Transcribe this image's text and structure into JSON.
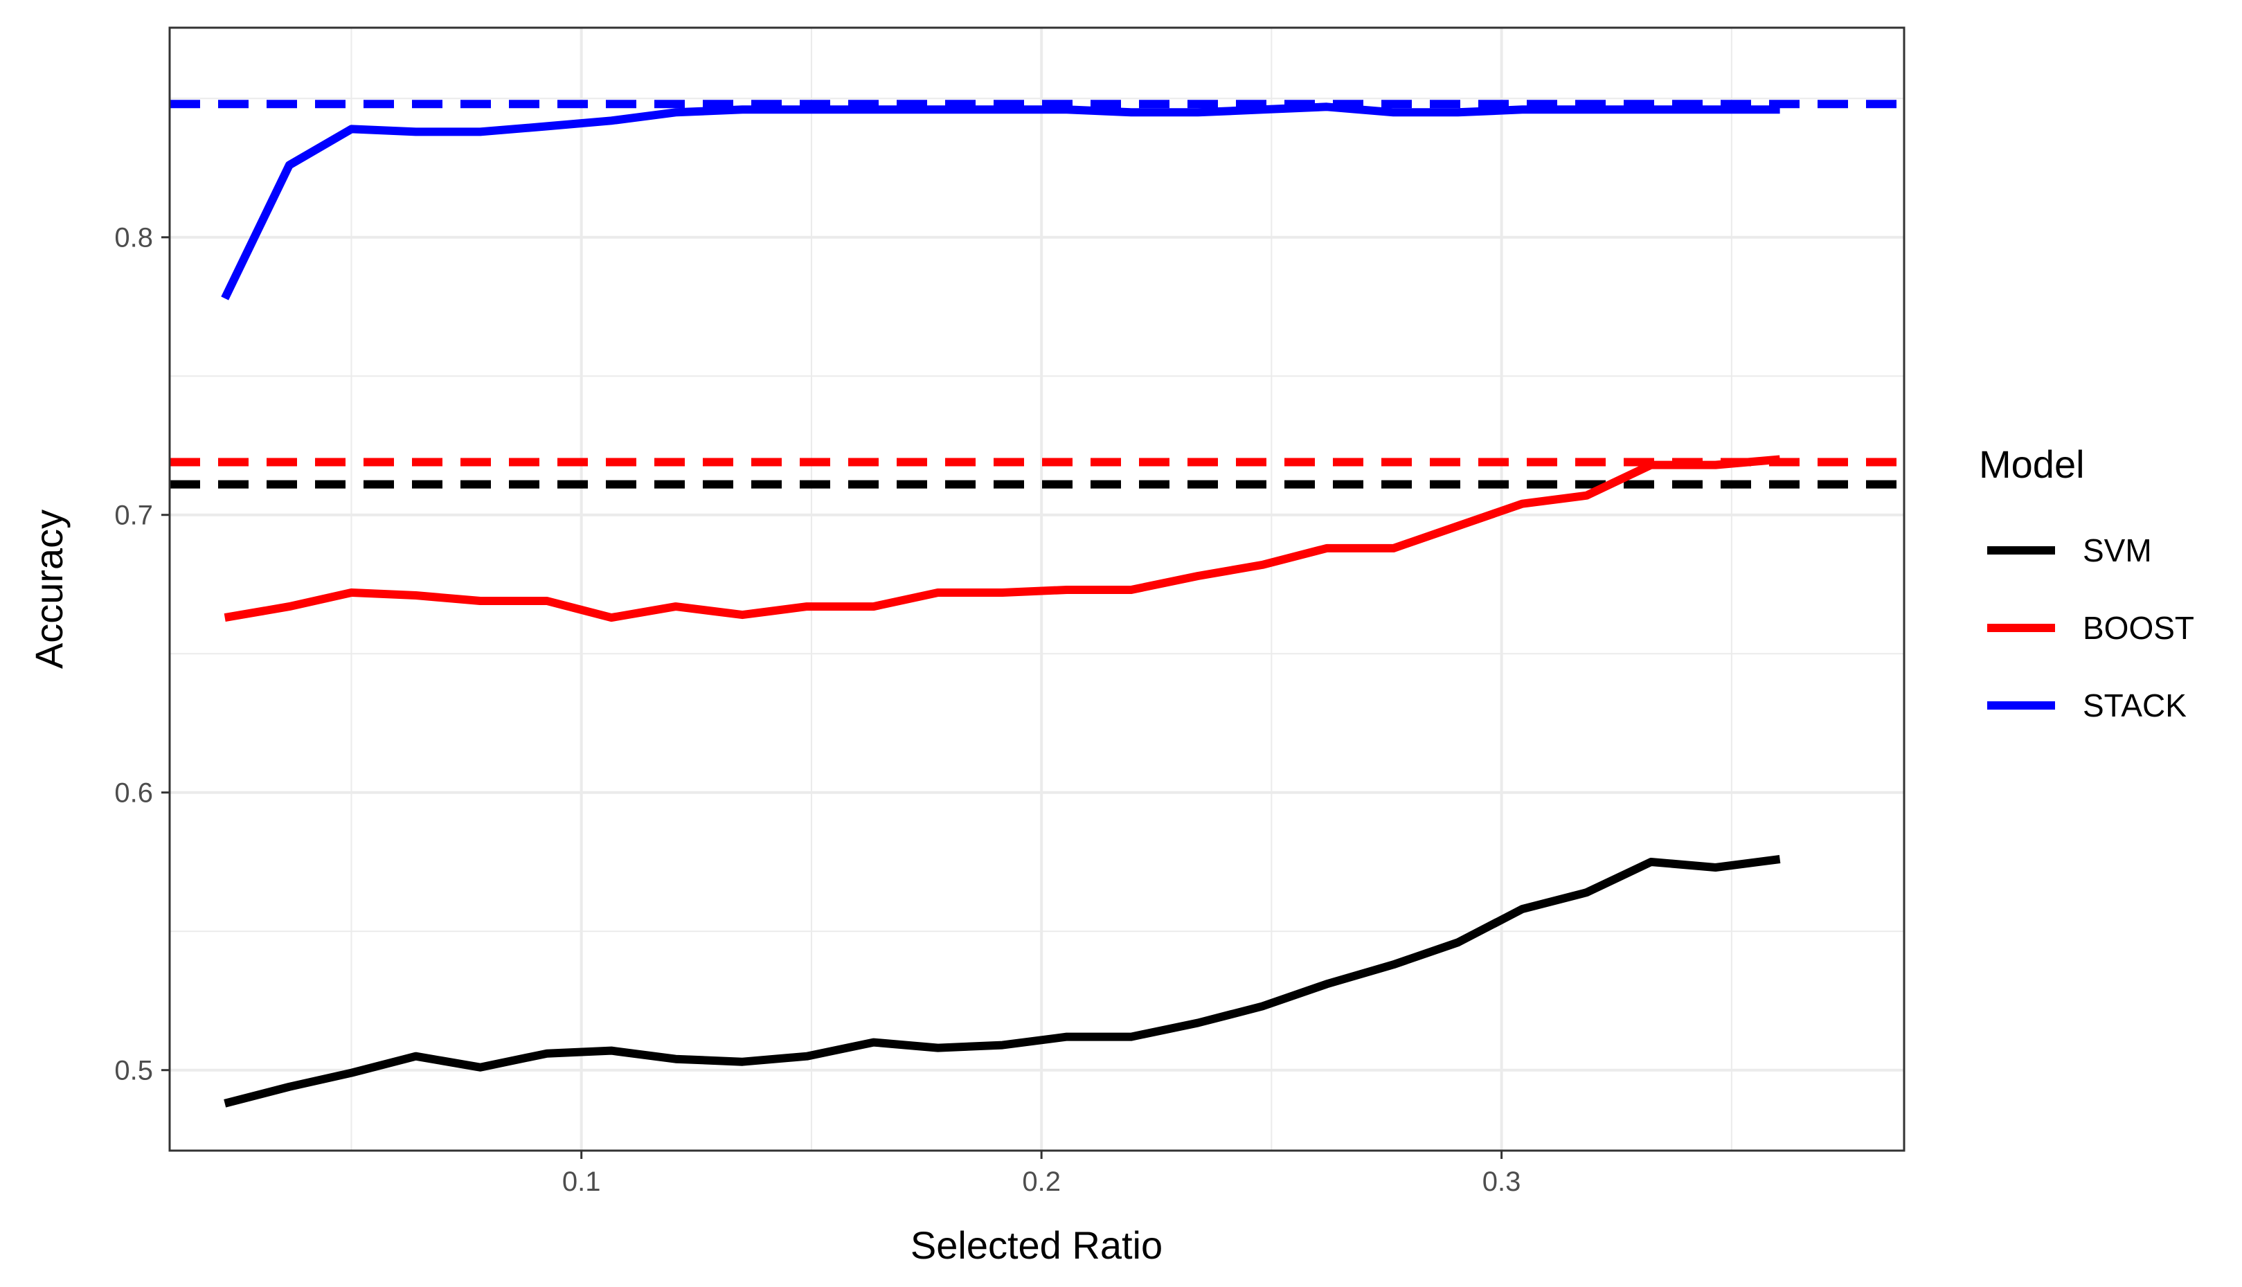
{
  "chart_data": {
    "type": "line",
    "title": "",
    "xlabel": "Selected Ratio",
    "ylabel": "Accuracy",
    "xlim": [
      0.0105,
      0.3875
    ],
    "ylim": [
      0.471,
      0.8755
    ],
    "x_ticks": [
      0.1,
      0.2,
      0.3
    ],
    "x_tick_labels": [
      "0.1",
      "0.2",
      "0.3"
    ],
    "y_ticks": [
      0.5,
      0.6,
      0.7,
      0.8
    ],
    "y_tick_labels": [
      "0.5",
      "0.6",
      "0.7",
      "0.8"
    ],
    "grid": true,
    "legend": {
      "title": "Model",
      "position": "right",
      "entries": [
        "SVM",
        "BOOST",
        "STACK"
      ]
    },
    "x": [
      0.0225,
      0.0365,
      0.05,
      0.064,
      0.078,
      0.0925,
      0.1065,
      0.1205,
      0.135,
      0.149,
      0.1635,
      0.1775,
      0.1915,
      0.2055,
      0.2195,
      0.234,
      0.248,
      0.262,
      0.2765,
      0.2905,
      0.3045,
      0.3185,
      0.3325,
      0.3465,
      0.3605
    ],
    "series": [
      {
        "name": "SVM",
        "color": "#000000",
        "values": [
          0.488,
          0.494,
          0.499,
          0.505,
          0.501,
          0.506,
          0.507,
          0.504,
          0.503,
          0.505,
          0.51,
          0.508,
          0.509,
          0.512,
          0.512,
          0.517,
          0.523,
          0.531,
          0.538,
          0.546,
          0.558,
          0.564,
          0.575,
          0.573,
          0.576
        ],
        "reference": 0.711
      },
      {
        "name": "BOOST",
        "color": "#ff0000",
        "values": [
          0.663,
          0.667,
          0.672,
          0.671,
          0.669,
          0.669,
          0.663,
          0.667,
          0.664,
          0.667,
          0.667,
          0.672,
          0.672,
          0.673,
          0.673,
          0.678,
          0.682,
          0.688,
          0.688,
          0.696,
          0.704,
          0.707,
          0.718,
          0.718,
          0.72
        ],
        "reference": 0.719
      },
      {
        "name": "STACK",
        "color": "#0000ff",
        "values": [
          0.778,
          0.826,
          0.839,
          0.838,
          0.838,
          0.84,
          0.842,
          0.845,
          0.846,
          0.846,
          0.846,
          0.846,
          0.846,
          0.846,
          0.845,
          0.845,
          0.846,
          0.847,
          0.845,
          0.845,
          0.846,
          0.846,
          0.846,
          0.846,
          0.846
        ],
        "reference": 0.848
      }
    ]
  }
}
